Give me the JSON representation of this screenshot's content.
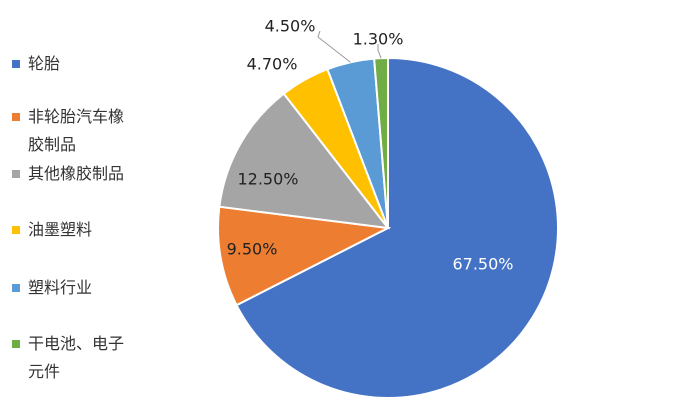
{
  "chart_data": {
    "type": "pie",
    "categories": [
      "轮胎",
      "非轮胎汽车橡胶制品",
      "其他橡胶制品",
      "油墨塑料",
      "塑料行业",
      "干电池、电子元件"
    ],
    "values": [
      67.5,
      9.5,
      12.5,
      4.7,
      4.5,
      1.3
    ],
    "value_labels": [
      "67.50%",
      "9.50%",
      "12.50%",
      "4.70%",
      "4.50%",
      "1.30%"
    ],
    "colors": [
      "#4472c4",
      "#ed7d31",
      "#a5a5a5",
      "#ffc000",
      "#5b9bd5",
      "#70ad47"
    ],
    "legend": "left"
  }
}
